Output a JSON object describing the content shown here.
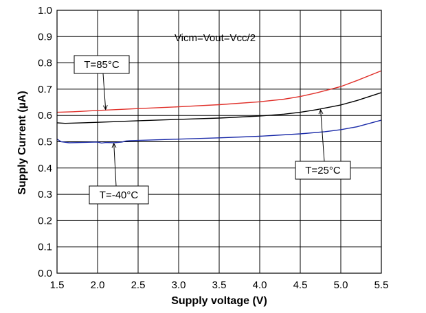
{
  "chart_data": {
    "type": "line",
    "title": "",
    "xlabel": "Supply voltage (V)",
    "ylabel": "Supply Current (µA)",
    "xlim": [
      1.5,
      5.5
    ],
    "ylim": [
      0.0,
      1.0
    ],
    "grid": true,
    "x_ticks": [
      1.5,
      2.0,
      2.5,
      3.0,
      3.5,
      4.0,
      4.5,
      5.0,
      5.5
    ],
    "x_tick_labels": [
      "1.5",
      "2.0",
      "2.5",
      "3.0",
      "3.5",
      "4.0",
      "4.5",
      "5.0",
      "5.5"
    ],
    "y_ticks": [
      0.0,
      0.1,
      0.2,
      0.3,
      0.4,
      0.5,
      0.6,
      0.7,
      0.8,
      0.9,
      1.0
    ],
    "y_tick_labels": [
      "0.0",
      "0.1",
      "0.2",
      "0.3",
      "0.4",
      "0.5",
      "0.6",
      "0.7",
      "0.8",
      "0.9",
      "1.0"
    ],
    "condition_label": "Vicm=Vout=Vcc/2",
    "series": [
      {
        "name": "T=85°C",
        "color": "#e0302a",
        "x": [
          1.5,
          1.7,
          2.0,
          2.5,
          3.0,
          3.5,
          4.0,
          4.3,
          4.5,
          4.7,
          5.0,
          5.2,
          5.5
        ],
        "y": [
          0.612,
          0.614,
          0.619,
          0.626,
          0.633,
          0.641,
          0.652,
          0.662,
          0.672,
          0.686,
          0.71,
          0.733,
          0.77
        ]
      },
      {
        "name": "T=25°C",
        "color": "#000000",
        "x": [
          1.5,
          1.6,
          2.0,
          2.5,
          3.0,
          3.5,
          4.0,
          4.3,
          4.5,
          4.7,
          5.0,
          5.2,
          5.5
        ],
        "y": [
          0.572,
          0.57,
          0.574,
          0.58,
          0.585,
          0.59,
          0.598,
          0.605,
          0.612,
          0.622,
          0.64,
          0.657,
          0.687
        ]
      },
      {
        "name": "T=-40°C",
        "color": "#1a2aa8",
        "x": [
          1.5,
          1.55,
          1.65,
          1.8,
          2.0,
          2.05,
          2.1,
          2.2,
          2.3,
          2.35,
          2.4,
          2.5,
          3.0,
          3.5,
          4.0,
          4.5,
          4.8,
          5.0,
          5.2,
          5.5
        ],
        "y": [
          0.51,
          0.5,
          0.496,
          0.497,
          0.499,
          0.495,
          0.497,
          0.496,
          0.499,
          0.503,
          0.504,
          0.505,
          0.51,
          0.515,
          0.521,
          0.53,
          0.538,
          0.546,
          0.557,
          0.582
        ]
      }
    ],
    "annotations": [
      {
        "text": "T=85°C",
        "series": "T=85°C",
        "point_x": 2.1,
        "point_y": 0.62
      },
      {
        "text": "T=25°C",
        "series": "T=25°C",
        "point_x": 4.75,
        "point_y": 0.624
      },
      {
        "text": "T=-40°C",
        "series": "T=-40°C",
        "point_x": 2.2,
        "point_y": 0.496
      }
    ]
  }
}
